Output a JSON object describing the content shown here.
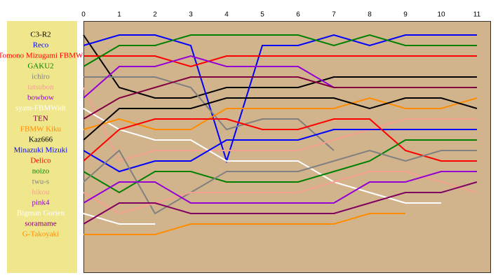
{
  "chart_data": {
    "type": "line",
    "x": [
      0,
      1,
      2,
      3,
      4,
      5,
      6,
      7,
      8,
      9,
      10,
      11
    ],
    "xlim": [
      0,
      11
    ],
    "xticks": [
      0,
      1,
      2,
      3,
      4,
      5,
      6,
      7,
      8,
      9,
      10,
      11
    ],
    "ylim": [
      0,
      24
    ],
    "yreverse": true,
    "series": [
      {
        "name": "C3-R2",
        "color": "#000000",
        "values": [
          1,
          6,
          7,
          7,
          6,
          6,
          6,
          5,
          5,
          5,
          5,
          5
        ]
      },
      {
        "name": "Reco",
        "color": "#0000ff",
        "values": [
          2,
          1,
          1,
          2,
          13,
          2,
          2,
          1,
          2,
          1,
          1,
          1
        ]
      },
      {
        "name": "Tomono Mizugami FBMW",
        "color": "#ff0000",
        "values": [
          3,
          3,
          3,
          4,
          3,
          3,
          3,
          3,
          3,
          3,
          3,
          3
        ]
      },
      {
        "name": "GAKU2",
        "color": "#008000",
        "values": [
          4,
          2,
          2,
          1,
          1,
          1,
          1,
          2,
          1,
          2,
          2,
          2
        ]
      },
      {
        "name": "ichiro",
        "color": "#808080",
        "values": [
          5,
          5,
          5,
          6,
          10,
          9,
          9,
          12,
          null,
          null,
          null,
          null
        ]
      },
      {
        "name": "tatsubon",
        "color": "#f4a090",
        "values": [
          6,
          13,
          12,
          12,
          12,
          12,
          12,
          11,
          10,
          9,
          9,
          9
        ]
      },
      {
        "name": "bowbow",
        "color": "#9400d3",
        "values": [
          7,
          4,
          4,
          3,
          4,
          4,
          4,
          6,
          6,
          6,
          6,
          6
        ]
      },
      {
        "name": "syam-FBMWidt",
        "color": "#ffffff",
        "values": [
          8,
          10,
          11,
          11,
          13,
          13,
          13,
          15,
          16,
          17,
          17,
          null
        ]
      },
      {
        "name": "TEN",
        "color": "#800040",
        "values": [
          9,
          7,
          6,
          5,
          5,
          5,
          5,
          6,
          6,
          6,
          6,
          6
        ]
      },
      {
        "name": "FBMW Kiku",
        "color": "#ff8c00",
        "values": [
          10,
          9,
          10,
          10,
          8,
          8,
          8,
          8,
          7,
          8,
          8,
          7
        ]
      },
      {
        "name": "Kaz666",
        "color": "#000000",
        "values": [
          11,
          8,
          8,
          8,
          7,
          7,
          7,
          7,
          8,
          7,
          7,
          8
        ]
      },
      {
        "name": "Minazuki Mizuki",
        "color": "#0000ff",
        "values": [
          12,
          14,
          13,
          13,
          11,
          11,
          11,
          10,
          10,
          10,
          10,
          10
        ]
      },
      {
        "name": "Delico",
        "color": "#ff0000",
        "values": [
          13,
          10,
          9,
          9,
          9,
          10,
          10,
          9,
          9,
          12,
          13,
          13
        ]
      },
      {
        "name": "noizo",
        "color": "#008000",
        "values": [
          14,
          16,
          14,
          14,
          15,
          15,
          15,
          14,
          13,
          11,
          11,
          11
        ]
      },
      {
        "name": "twu-s",
        "color": "#808080",
        "values": [
          15,
          12,
          18,
          16,
          14,
          14,
          14,
          13,
          12,
          13,
          12,
          12
        ]
      },
      {
        "name": "hikou",
        "color": "#f4a090",
        "values": [
          16,
          18,
          17,
          16,
          16,
          16,
          16,
          15,
          14,
          14,
          15,
          16
        ]
      },
      {
        "name": "pink4",
        "color": "#9400d3",
        "values": [
          17,
          15,
          15,
          17,
          17,
          17,
          17,
          17,
          15,
          15,
          14,
          14
        ]
      },
      {
        "name": "Bigman Gorien",
        "color": "#ffffff",
        "values": [
          18,
          19,
          19,
          null,
          null,
          null,
          null,
          null,
          null,
          null,
          null,
          null
        ]
      },
      {
        "name": "soramame",
        "color": "#800060",
        "values": [
          19,
          17,
          17,
          18,
          18,
          18,
          18,
          18,
          17,
          16,
          16,
          15
        ]
      },
      {
        "name": "G-Takoyaki",
        "color": "#ff8c00",
        "values": [
          20,
          20,
          20,
          19,
          19,
          19,
          19,
          19,
          18,
          18,
          null,
          null
        ]
      }
    ]
  }
}
